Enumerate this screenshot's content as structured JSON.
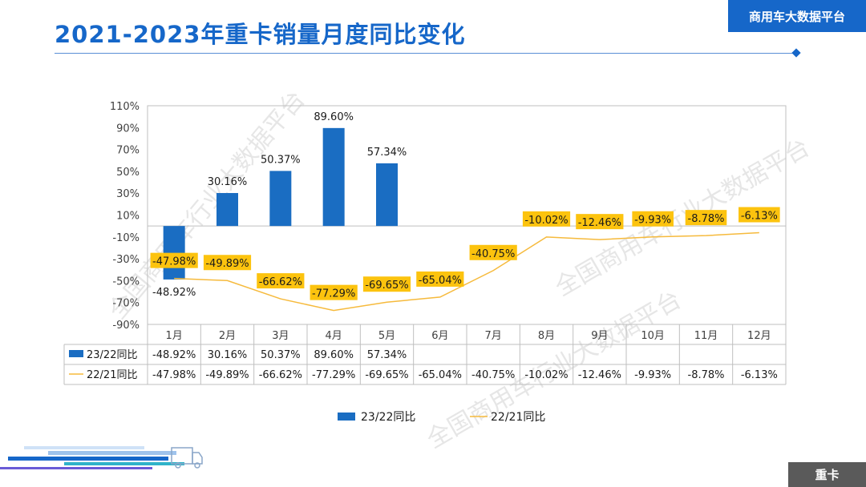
{
  "header": {
    "title": "2021-2023年重卡销量月度同比变化",
    "brand": "商用车大数据平台"
  },
  "footer": {
    "tag": "重卡"
  },
  "watermark": "全国商用车行业大数据平台",
  "colors": {
    "brand": "#1667c9",
    "bar": "#1a6dc2",
    "line": "#f6ba3c",
    "label_box": "#fcc30e",
    "tag_bg": "#5a5a5a"
  },
  "chart_data": {
    "type": "bar",
    "title": "",
    "categories": [
      "1月",
      "2月",
      "3月",
      "4月",
      "5月",
      "6月",
      "7月",
      "8月",
      "9月",
      "10月",
      "11月",
      "12月"
    ],
    "y_ticks": [
      "110%",
      "90%",
      "70%",
      "50%",
      "30%",
      "10%",
      "-10%",
      "-30%",
      "-50%",
      "-70%",
      "-90%"
    ],
    "ylim": [
      -90,
      110
    ],
    "grid": false,
    "legend_position": "bottom",
    "series": [
      {
        "name": "23/22同比",
        "kind": "bar",
        "values": [
          -48.92,
          30.16,
          50.37,
          89.6,
          57.34,
          null,
          null,
          null,
          null,
          null,
          null,
          null
        ],
        "labels": [
          "-48.92%",
          "30.16%",
          "50.37%",
          "89.60%",
          "57.34%",
          "",
          "",
          "",
          "",
          "",
          "",
          ""
        ]
      },
      {
        "name": "22/21同比",
        "kind": "line",
        "values": [
          -47.98,
          -49.89,
          -66.62,
          -77.29,
          -69.65,
          -65.04,
          -40.75,
          -10.02,
          -12.46,
          -9.93,
          -8.78,
          -6.13
        ],
        "labels": [
          "-47.98%",
          "-49.89%",
          "-66.62%",
          "-77.29%",
          "-69.65%",
          "-65.04%",
          "-40.75%",
          "-10.02%",
          "-12.46%",
          "-9.93%",
          "-8.78%",
          "-6.13%"
        ]
      }
    ]
  }
}
